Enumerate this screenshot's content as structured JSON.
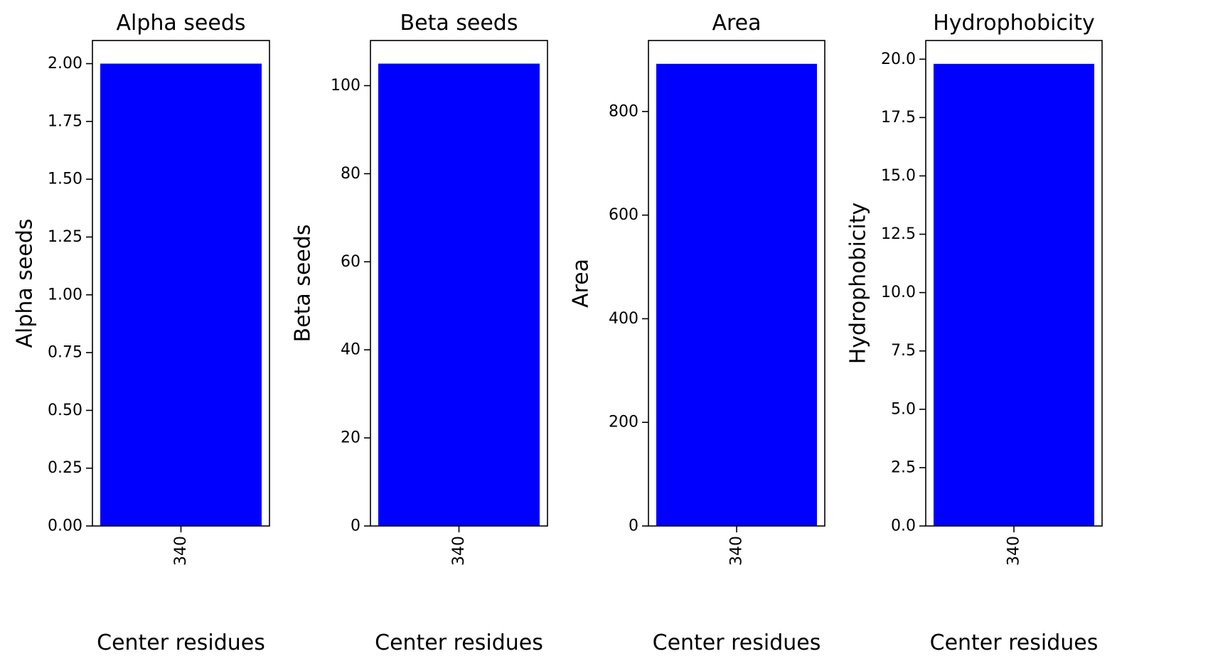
{
  "figure": {
    "background": "#ffffff"
  },
  "chart_data": [
    {
      "type": "bar",
      "title": "Alpha seeds",
      "xlabel": "Center residues",
      "ylabel": "Alpha seeds",
      "categories": [
        "340"
      ],
      "values": [
        2.0
      ],
      "ylim": [
        0,
        2.1
      ],
      "yticks": [
        0,
        0.25,
        0.5,
        0.75,
        1.0,
        1.25,
        1.5,
        1.75,
        2.0
      ],
      "ytick_labels": [
        "0.00",
        "0.25",
        "0.50",
        "0.75",
        "1.00",
        "1.25",
        "1.50",
        "1.75",
        "2.00"
      ],
      "bar_color": "#0000ff",
      "grid": false,
      "legend": false
    },
    {
      "type": "bar",
      "title": "Beta seeds",
      "xlabel": "Center residues",
      "ylabel": "Beta seeds",
      "categories": [
        "340"
      ],
      "values": [
        105
      ],
      "ylim": [
        0,
        110.25
      ],
      "yticks": [
        0,
        20,
        40,
        60,
        80,
        100
      ],
      "ytick_labels": [
        "0",
        "20",
        "40",
        "60",
        "80",
        "100"
      ],
      "bar_color": "#0000ff",
      "grid": false,
      "legend": false
    },
    {
      "type": "bar",
      "title": "Area",
      "xlabel": "Center residues",
      "ylabel": "Area",
      "categories": [
        "340"
      ],
      "values": [
        892
      ],
      "ylim": [
        0,
        937
      ],
      "yticks": [
        0,
        200,
        400,
        600,
        800
      ],
      "ytick_labels": [
        "0",
        "200",
        "400",
        "600",
        "800"
      ],
      "bar_color": "#0000ff",
      "grid": false,
      "legend": false
    },
    {
      "type": "bar",
      "title": "Hydrophobicity",
      "xlabel": "Center residues",
      "ylabel": "Hydrophobicity",
      "categories": [
        "340"
      ],
      "values": [
        19.8
      ],
      "ylim": [
        0,
        20.8
      ],
      "yticks": [
        0,
        2.5,
        5.0,
        7.5,
        10.0,
        12.5,
        15.0,
        17.5,
        20.0
      ],
      "ytick_labels": [
        "0.0",
        "2.5",
        "5.0",
        "7.5",
        "10.0",
        "12.5",
        "15.0",
        "17.5",
        "20.0"
      ],
      "bar_color": "#0000ff",
      "grid": false,
      "legend": false
    }
  ]
}
